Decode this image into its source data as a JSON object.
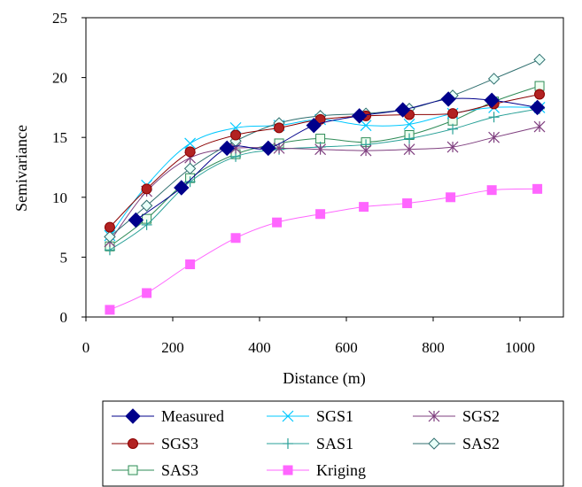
{
  "chart_data": {
    "type": "line",
    "title": "",
    "xlabel": "Distance (m)",
    "ylabel": "Semivariance",
    "xlim": [
      0,
      1100
    ],
    "ylim": [
      0,
      25
    ],
    "xticks": [
      "0",
      "200",
      "400",
      "600",
      "800",
      "1000"
    ],
    "yticks": [
      "0",
      "5",
      "10",
      "15",
      "20",
      "25"
    ],
    "grid": false,
    "legend_position": "bottom",
    "series": [
      {
        "name": "Measured",
        "marker": "diamond-filled",
        "color": "#00008b",
        "x": [
          115,
          220,
          325,
          420,
          525,
          630,
          730,
          835,
          935,
          1040
        ],
        "y": [
          8.1,
          10.8,
          14.1,
          14.1,
          16.0,
          16.8,
          17.3,
          18.2,
          18.1,
          17.5
        ]
      },
      {
        "name": "SGS1",
        "marker": "x",
        "color": "#00c8ff",
        "x": [
          55,
          140,
          240,
          345,
          445,
          540,
          645,
          745,
          845,
          940,
          1045
        ],
        "y": [
          6.8,
          11.0,
          14.5,
          15.8,
          16.0,
          16.5,
          16.0,
          16.1,
          17.0,
          17.5,
          17.5
        ]
      },
      {
        "name": "SGS2",
        "marker": "asterisk",
        "color": "#7f3f7f",
        "x": [
          55,
          140,
          240,
          345,
          445,
          540,
          645,
          745,
          845,
          940,
          1045
        ],
        "y": [
          6.3,
          10.5,
          13.3,
          14.1,
          14.1,
          14.0,
          13.9,
          14.0,
          14.2,
          15.0,
          15.9
        ]
      },
      {
        "name": "SGS3",
        "marker": "circle-filled",
        "color": "#8b1a00",
        "x": [
          55,
          140,
          240,
          345,
          445,
          540,
          645,
          745,
          845,
          940,
          1045
        ],
        "y": [
          7.5,
          10.7,
          13.8,
          15.2,
          15.8,
          16.5,
          16.8,
          16.9,
          17.0,
          17.8,
          18.6
        ]
      },
      {
        "name": "SAS1",
        "marker": "plus",
        "color": "#2aa198",
        "x": [
          55,
          140,
          240,
          345,
          445,
          540,
          645,
          745,
          845,
          940,
          1045
        ],
        "y": [
          5.6,
          7.7,
          11.3,
          13.4,
          14.0,
          14.2,
          14.4,
          14.9,
          15.7,
          16.7,
          17.4
        ]
      },
      {
        "name": "SAS2",
        "marker": "diamond-open",
        "color": "#2f6f6f",
        "x": [
          55,
          140,
          240,
          345,
          445,
          540,
          645,
          745,
          845,
          940,
          1045
        ],
        "y": [
          6.7,
          9.3,
          12.4,
          14.7,
          16.2,
          16.8,
          17.0,
          17.4,
          18.5,
          19.9,
          21.5
        ]
      },
      {
        "name": "SAS3",
        "marker": "square-open",
        "color": "#2e8b57",
        "x": [
          55,
          140,
          240,
          345,
          445,
          540,
          645,
          745,
          845,
          940,
          1045
        ],
        "y": [
          5.9,
          8.2,
          11.6,
          13.6,
          14.5,
          14.9,
          14.6,
          15.2,
          16.4,
          18.0,
          19.3
        ]
      },
      {
        "name": "Kriging",
        "marker": "square-filled",
        "color": "#ff66ff",
        "x": [
          55,
          140,
          240,
          345,
          440,
          540,
          640,
          740,
          840,
          935,
          1040
        ],
        "y": [
          0.6,
          2.0,
          4.4,
          6.6,
          7.9,
          8.6,
          9.2,
          9.5,
          10.0,
          10.6,
          10.7
        ]
      }
    ]
  }
}
